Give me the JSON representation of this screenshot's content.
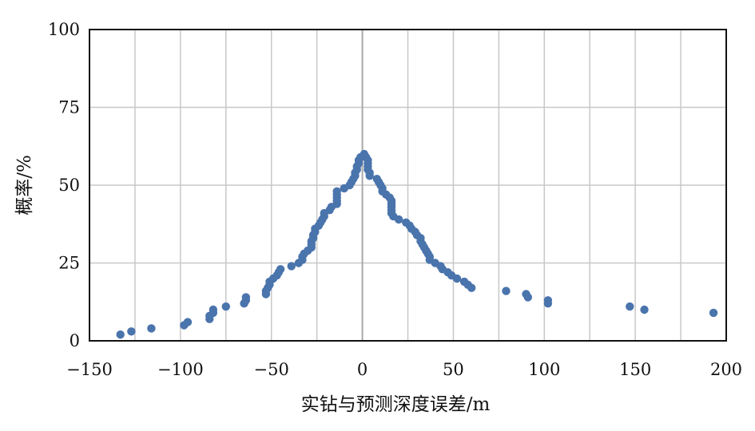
{
  "chart_data": {
    "type": "scatter",
    "title": "",
    "xlabel": "实钻与预测深度误差/m",
    "ylabel": "概率/%",
    "xlim": [
      -150,
      200
    ],
    "ylim": [
      0,
      100
    ],
    "x_ticks": [
      -150,
      -100,
      -50,
      0,
      50,
      100,
      150,
      200
    ],
    "y_ticks": [
      0,
      25,
      50,
      75,
      100
    ],
    "x_tick_labels": [
      "−150",
      "−100",
      "−50",
      "0",
      "50",
      "100",
      "150",
      "200"
    ],
    "y_tick_labels": [
      "0",
      "25",
      "50",
      "75",
      "100"
    ],
    "grid": true,
    "legend": "none",
    "colors": {
      "marker": "#4a74ac",
      "grid": "#c8c8c8",
      "zero_line": "#a8a8a8",
      "frame": "#111111"
    },
    "series": [
      {
        "points": [
          [
            -133,
            2
          ],
          [
            -127,
            3
          ],
          [
            -116,
            4
          ],
          [
            -98,
            5
          ],
          [
            -96,
            6
          ],
          [
            -84,
            7
          ],
          [
            -84,
            8
          ],
          [
            -82,
            9
          ],
          [
            -82,
            10
          ],
          [
            -75,
            11
          ],
          [
            -65,
            12
          ],
          [
            -64,
            13
          ],
          [
            -64,
            14
          ],
          [
            -53,
            15
          ],
          [
            -53,
            16
          ],
          [
            -52,
            17
          ],
          [
            -51,
            18
          ],
          [
            -51,
            19
          ],
          [
            -49,
            20
          ],
          [
            -47,
            21
          ],
          [
            -46,
            22
          ],
          [
            -45,
            23
          ],
          [
            -39,
            24
          ],
          [
            -35,
            25
          ],
          [
            -33,
            26
          ],
          [
            -33,
            27
          ],
          [
            -32,
            28
          ],
          [
            -30,
            29
          ],
          [
            -28,
            30
          ],
          [
            -28,
            31
          ],
          [
            -28,
            32
          ],
          [
            -27,
            33
          ],
          [
            -27,
            34
          ],
          [
            -26,
            35
          ],
          [
            -26,
            36
          ],
          [
            -24,
            37
          ],
          [
            -23,
            38
          ],
          [
            -22,
            39
          ],
          [
            -21,
            40
          ],
          [
            -21,
            41
          ],
          [
            -18,
            42
          ],
          [
            -17,
            43
          ],
          [
            -14,
            44
          ],
          [
            -14,
            45
          ],
          [
            -14,
            46
          ],
          [
            -14,
            47
          ],
          [
            -14,
            48
          ],
          [
            -10,
            49
          ],
          [
            -7,
            50
          ],
          [
            -6,
            51
          ],
          [
            -5,
            52
          ],
          [
            -4,
            53
          ],
          [
            -4,
            54
          ],
          [
            -3,
            55
          ],
          [
            -3,
            56
          ],
          [
            -2,
            57
          ],
          [
            -2,
            58
          ],
          [
            -1,
            59
          ],
          [
            1,
            60
          ],
          [
            2,
            59
          ],
          [
            3,
            58
          ],
          [
            3,
            57
          ],
          [
            3,
            56
          ],
          [
            3,
            55
          ],
          [
            4,
            54
          ],
          [
            4,
            53
          ],
          [
            8,
            52
          ],
          [
            9,
            51
          ],
          [
            10,
            50
          ],
          [
            11,
            49
          ],
          [
            11,
            48
          ],
          [
            13,
            47
          ],
          [
            15,
            46
          ],
          [
            16,
            45
          ],
          [
            16,
            44
          ],
          [
            16,
            43
          ],
          [
            16,
            42
          ],
          [
            16,
            41
          ],
          [
            17,
            40
          ],
          [
            20,
            39
          ],
          [
            24,
            38
          ],
          [
            26,
            37
          ],
          [
            27,
            36
          ],
          [
            29,
            35
          ],
          [
            30,
            34
          ],
          [
            32,
            33
          ],
          [
            32,
            32
          ],
          [
            33,
            31
          ],
          [
            34,
            30
          ],
          [
            35,
            29
          ],
          [
            36,
            28
          ],
          [
            37,
            27
          ],
          [
            37,
            26
          ],
          [
            40,
            25
          ],
          [
            43,
            24
          ],
          [
            44,
            23
          ],
          [
            47,
            22
          ],
          [
            49,
            21
          ],
          [
            52,
            20
          ],
          [
            56,
            19
          ],
          [
            58,
            18
          ],
          [
            60,
            17
          ],
          [
            79,
            16
          ],
          [
            90,
            15
          ],
          [
            91,
            14
          ],
          [
            102,
            13
          ],
          [
            102,
            12
          ],
          [
            147,
            11
          ],
          [
            155,
            10
          ],
          [
            193,
            9
          ]
        ]
      }
    ]
  }
}
